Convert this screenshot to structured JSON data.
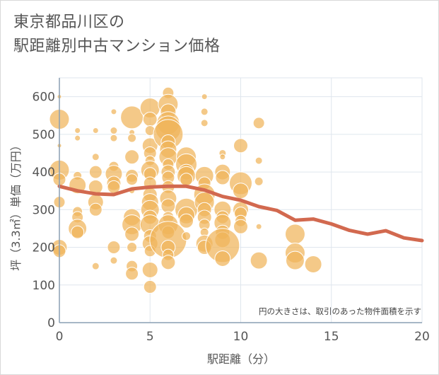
{
  "chart_data": {
    "type": "scatter",
    "title_line1": "東京都品川区の",
    "title_line2": "駅距離別中古マンション価格",
    "xlabel": "駅距離（分）",
    "ylabel": "坪（3.3㎡）単価（万円）",
    "note": "円の大きさは、取引のあった物件面積を示す",
    "xlim": [
      0,
      20
    ],
    "ylim": [
      0,
      650
    ],
    "x_ticks": [
      "0",
      "5",
      "10",
      "15",
      "20"
    ],
    "y_ticks": [
      "0",
      "100",
      "200",
      "300",
      "400",
      "500",
      "600"
    ],
    "grid": true,
    "colors": {
      "bubble": "#f0b45a",
      "bubble_stroke": "#ffffff",
      "line": "#d2694f",
      "grid": "#dfe6ed",
      "axis": "#8a9fb3"
    },
    "series": [
      {
        "type": "line",
        "x": [
          0,
          1,
          2,
          3,
          4,
          5,
          6,
          7,
          8,
          9,
          10,
          11,
          12,
          13,
          14,
          15,
          16,
          17,
          18,
          19,
          20
        ],
        "y": [
          362,
          350,
          342,
          340,
          355,
          360,
          362,
          362,
          352,
          335,
          325,
          308,
          298,
          272,
          275,
          262,
          245,
          235,
          244,
          225,
          218
        ]
      },
      {
        "type": "bubble",
        "points": [
          [
            0,
            600,
            3
          ],
          [
            0,
            540,
            14
          ],
          [
            0,
            470,
            3
          ],
          [
            0,
            405,
            14
          ],
          [
            0,
            380,
            9
          ],
          [
            0,
            320,
            8
          ],
          [
            0,
            200,
            11
          ],
          [
            0,
            190,
            9
          ],
          [
            1,
            510,
            4
          ],
          [
            1,
            490,
            4
          ],
          [
            1,
            390,
            6
          ],
          [
            1,
            365,
            12
          ],
          [
            1,
            295,
            7
          ],
          [
            1,
            280,
            8
          ],
          [
            1,
            250,
            13
          ],
          [
            1,
            240,
            9
          ],
          [
            2,
            510,
            4
          ],
          [
            2,
            440,
            5
          ],
          [
            2,
            400,
            9
          ],
          [
            2,
            360,
            10
          ],
          [
            2,
            320,
            11
          ],
          [
            2,
            300,
            9
          ],
          [
            2,
            150,
            5
          ],
          [
            3,
            560,
            4
          ],
          [
            3,
            510,
            5
          ],
          [
            3,
            490,
            5
          ],
          [
            3,
            415,
            7
          ],
          [
            3,
            395,
            12
          ],
          [
            3,
            370,
            10
          ],
          [
            3,
            360,
            9
          ],
          [
            3,
            200,
            9
          ],
          [
            3,
            165,
            5
          ],
          [
            4,
            545,
            16
          ],
          [
            4,
            505,
            4
          ],
          [
            4,
            490,
            6
          ],
          [
            4,
            440,
            10
          ],
          [
            4,
            390,
            9
          ],
          [
            4,
            380,
            8
          ],
          [
            4,
            350,
            4
          ],
          [
            4,
            280,
            12
          ],
          [
            4,
            260,
            14
          ],
          [
            4,
            235,
            10
          ],
          [
            4,
            200,
            7
          ],
          [
            4,
            150,
            8
          ],
          [
            4,
            130,
            9
          ],
          [
            5,
            570,
            14
          ],
          [
            5,
            540,
            10
          ],
          [
            5,
            510,
            7
          ],
          [
            5,
            470,
            11
          ],
          [
            5,
            450,
            9
          ],
          [
            5,
            430,
            7
          ],
          [
            5,
            405,
            13
          ],
          [
            5,
            395,
            9
          ],
          [
            5,
            370,
            9
          ],
          [
            5,
            340,
            10
          ],
          [
            5,
            320,
            12
          ],
          [
            5,
            300,
            13
          ],
          [
            5,
            280,
            10
          ],
          [
            5,
            260,
            14
          ],
          [
            5,
            230,
            9
          ],
          [
            5,
            210,
            11
          ],
          [
            5,
            190,
            8
          ],
          [
            5,
            140,
            11
          ],
          [
            5,
            95,
            9
          ],
          [
            6,
            610,
            8
          ],
          [
            6,
            580,
            14
          ],
          [
            6,
            560,
            11
          ],
          [
            6,
            530,
            16
          ],
          [
            6,
            515,
            18
          ],
          [
            6,
            500,
            21
          ],
          [
            6,
            480,
            10
          ],
          [
            6,
            460,
            12
          ],
          [
            6,
            440,
            13
          ],
          [
            6,
            420,
            8
          ],
          [
            6,
            400,
            10
          ],
          [
            6,
            385,
            9
          ],
          [
            6,
            360,
            9
          ],
          [
            6,
            330,
            12
          ],
          [
            6,
            310,
            10
          ],
          [
            6,
            280,
            8
          ],
          [
            6,
            260,
            14
          ],
          [
            6,
            240,
            9
          ],
          [
            6,
            220,
            26
          ],
          [
            6,
            200,
            10
          ],
          [
            6,
            180,
            8
          ],
          [
            6,
            160,
            10
          ],
          [
            7,
            440,
            14
          ],
          [
            7,
            420,
            15
          ],
          [
            7,
            400,
            11
          ],
          [
            7,
            390,
            13
          ],
          [
            7,
            380,
            9
          ],
          [
            7,
            300,
            16
          ],
          [
            7,
            285,
            12
          ],
          [
            7,
            270,
            10
          ],
          [
            7,
            230,
            6
          ],
          [
            8,
            600,
            4
          ],
          [
            8,
            560,
            5
          ],
          [
            8,
            530,
            5
          ],
          [
            8,
            390,
            13
          ],
          [
            8,
            370,
            9
          ],
          [
            8,
            340,
            15
          ],
          [
            8,
            320,
            14
          ],
          [
            8,
            300,
            10
          ],
          [
            8,
            280,
            10
          ],
          [
            8,
            260,
            8
          ],
          [
            8,
            240,
            6
          ],
          [
            8,
            210,
            12
          ],
          [
            8,
            200,
            10
          ],
          [
            9,
            450,
            5
          ],
          [
            9,
            440,
            4
          ],
          [
            9,
            400,
            11
          ],
          [
            9,
            385,
            10
          ],
          [
            9,
            300,
            12
          ],
          [
            9,
            280,
            9
          ],
          [
            9,
            265,
            12
          ],
          [
            9,
            240,
            10
          ],
          [
            9,
            220,
            11
          ],
          [
            9,
            205,
            24
          ],
          [
            9,
            170,
            11
          ],
          [
            10,
            470,
            10
          ],
          [
            10,
            370,
            16
          ],
          [
            10,
            350,
            11
          ],
          [
            10,
            300,
            11
          ],
          [
            10,
            290,
            9
          ],
          [
            10,
            270,
            8
          ],
          [
            10,
            255,
            10
          ],
          [
            11,
            530,
            8
          ],
          [
            11,
            430,
            5
          ],
          [
            11,
            375,
            6
          ],
          [
            11,
            255,
            4
          ],
          [
            11,
            165,
            12
          ],
          [
            13,
            235,
            14
          ],
          [
            13,
            185,
            14
          ],
          [
            13,
            165,
            13
          ],
          [
            14,
            155,
            12
          ]
        ]
      }
    ]
  }
}
